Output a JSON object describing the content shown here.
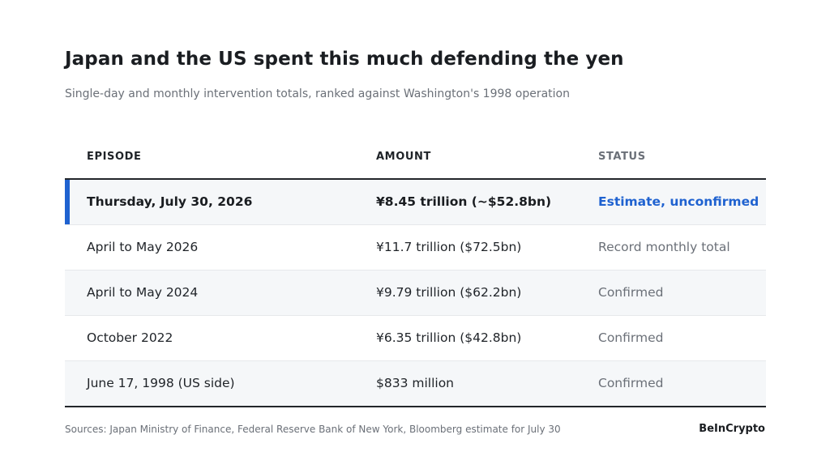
{
  "header": {
    "title": "Japan and the US spent this much defending the yen",
    "subtitle": "Single-day and monthly intervention totals, ranked against Washington's 1998 operation"
  },
  "table": {
    "columns": [
      "EPISODE",
      "AMOUNT",
      "STATUS"
    ],
    "rows": [
      {
        "episode": "Thursday, July 30, 2026",
        "amount": "¥8.45 trillion (~$52.8bn)",
        "status": "Estimate, unconfirmed"
      },
      {
        "episode": "April to May 2026",
        "amount": "¥11.7 trillion ($72.5bn)",
        "status": "Record monthly total"
      },
      {
        "episode": "April to May 2024",
        "amount": "¥9.79 trillion ($62.2bn)",
        "status": "Confirmed"
      },
      {
        "episode": "October 2022",
        "amount": "¥6.35 trillion ($42.8bn)",
        "status": "Confirmed"
      },
      {
        "episode": "June 17, 1998 (US side)",
        "amount": "$833 million",
        "status": "Confirmed"
      }
    ]
  },
  "footer": {
    "sources": "Sources: Japan Ministry of Finance, Federal Reserve Bank of New York, Bloomberg estimate for July 30",
    "brand": "BeInCrypto"
  },
  "colors": {
    "accent": "#1f62d0",
    "row_alt": "#f5f7f9"
  }
}
